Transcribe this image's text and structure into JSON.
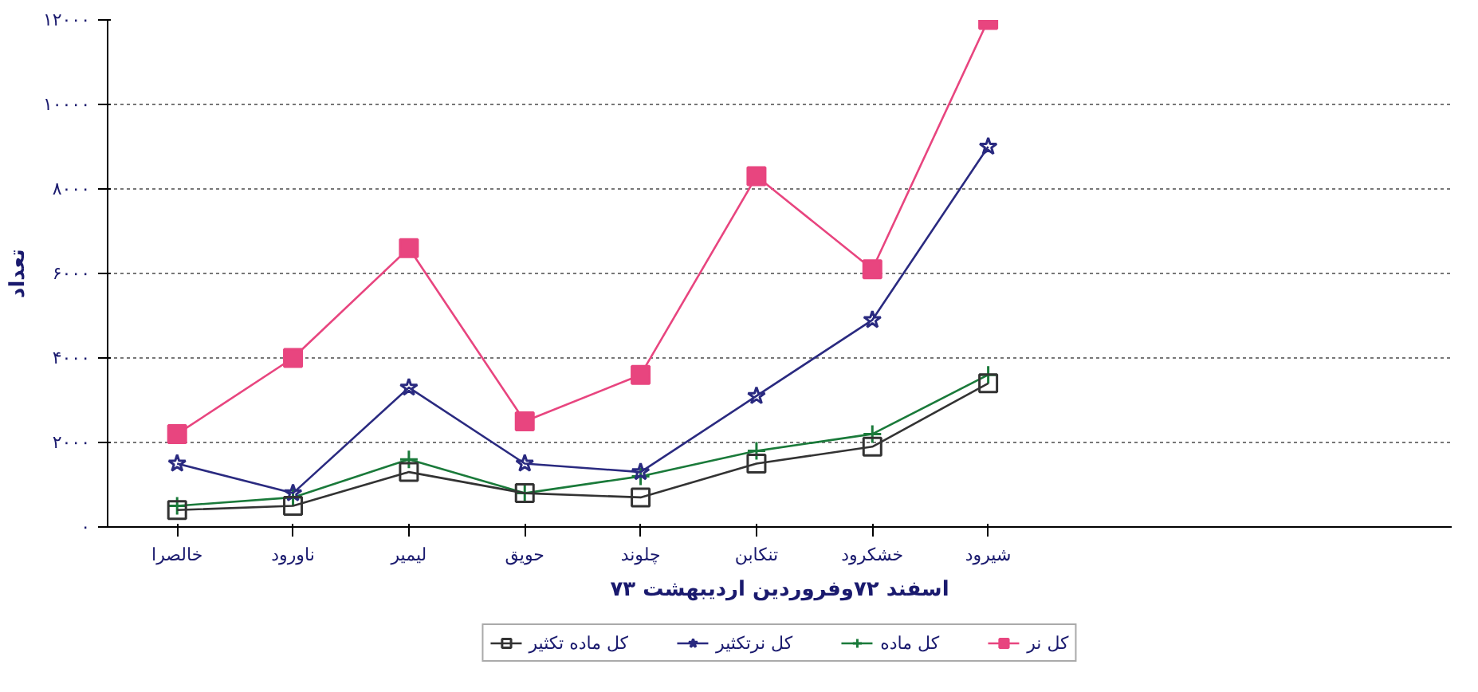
{
  "chart_data": {
    "type": "line",
    "xlabel": "اسفند ۷۲وفروردین اردیبهشت ۷۳",
    "ylabel": "تعداد",
    "categories": [
      "خالصرا",
      "ناورود",
      "لیمیر",
      "حویق",
      "چلوند",
      "تنکابن",
      "خشکرود",
      "شیرود"
    ],
    "series": [
      {
        "name": "کل نر",
        "color": "#e8457f",
        "marker": "square",
        "values": [
          2200,
          4000,
          6600,
          2500,
          3600,
          8300,
          6100,
          12000
        ]
      },
      {
        "name": "کل ماده",
        "color": "#1a7a3a",
        "marker": "cross",
        "values": [
          500,
          700,
          1600,
          800,
          1200,
          1800,
          2200,
          3600
        ]
      },
      {
        "name": "کل نرتکثیر",
        "color": "#2a2a80",
        "marker": "star",
        "values": [
          1500,
          800,
          3300,
          1500,
          1300,
          3100,
          4900,
          9000
        ]
      },
      {
        "name": "کل ماده تکثیر",
        "color": "#333333",
        "marker": "square",
        "values": [
          400,
          500,
          1300,
          800,
          700,
          1500,
          1900,
          3400
        ]
      }
    ],
    "ylim": [
      0,
      12000
    ],
    "yticks": [
      {
        "value": 0,
        "label": "۰"
      },
      {
        "value": 2000,
        "label": "۲۰۰۰"
      },
      {
        "value": 4000,
        "label": "۴۰۰۰"
      },
      {
        "value": 6000,
        "label": "۶۰۰۰"
      },
      {
        "value": 8000,
        "label": "۸۰۰۰"
      },
      {
        "value": 10000,
        "label": "۱۰۰۰۰"
      },
      {
        "value": 12000,
        "label": "۱۲۰۰۰"
      }
    ],
    "grid": "y",
    "legend": "bottom",
    "line_style": "solid"
  }
}
